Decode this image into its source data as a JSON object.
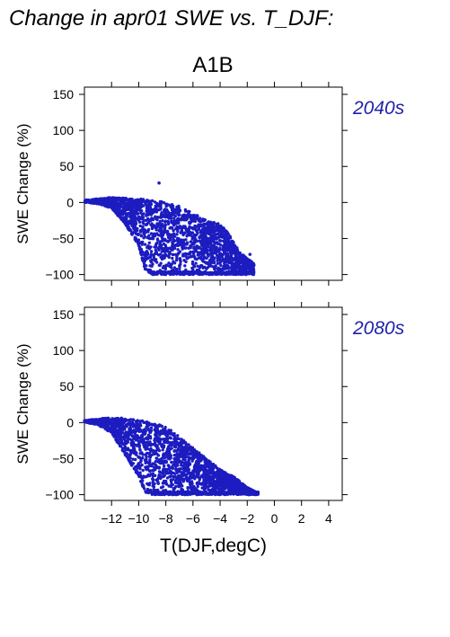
{
  "title": "Change in apr01 SWE vs. T_DJF:",
  "panel_title": "A1B",
  "colors": {
    "points": "#1c1cc0",
    "period_label": "#2222aa",
    "axis": "#000000"
  },
  "chart_data": [
    {
      "type": "scatter",
      "period": "2040s",
      "ylabel": "SWE Change (%)",
      "xlabel": "",
      "xlim": [
        -14,
        5
      ],
      "ylim": [
        -108,
        160
      ],
      "yticks": [
        -100,
        -50,
        0,
        50,
        100,
        150
      ],
      "xticks": [
        -12,
        -10,
        -8,
        -6,
        -4,
        -2,
        0,
        2,
        4
      ],
      "envelope": {
        "x": [
          -14.0,
          -13.0,
          -12.0,
          -11.0,
          -10.0,
          -9.5,
          -9.0,
          -8.0,
          -7.0,
          -6.0,
          -5.0,
          -4.0,
          -3.5,
          -3.0,
          -2.5,
          -1.5
        ],
        "upper": [
          3,
          5,
          7,
          6,
          5,
          4,
          3,
          0,
          -5,
          -15,
          -25,
          -30,
          -40,
          -55,
          -70,
          -85
        ],
        "lower": [
          0,
          -2,
          -8,
          -30,
          -60,
          -95,
          -100,
          -100,
          -100,
          -100,
          -100,
          -100,
          -100,
          -100,
          -100,
          -100
        ]
      },
      "outliers": [
        {
          "x": -8.5,
          "y": 27
        },
        {
          "x": -1.8,
          "y": -72
        }
      ]
    },
    {
      "type": "scatter",
      "period": "2080s",
      "ylabel": "SWE Change (%)",
      "xlabel": "T(DJF,degC)",
      "xlim": [
        -14,
        5
      ],
      "ylim": [
        -108,
        160
      ],
      "yticks": [
        -100,
        -50,
        0,
        50,
        100,
        150
      ],
      "xticks": [
        -12,
        -10,
        -8,
        -6,
        -4,
        -2,
        0,
        2,
        4
      ],
      "xtick_labels": [
        "−12",
        "−10",
        "−8",
        "−6",
        "−4",
        "−2",
        "0",
        "2",
        "4"
      ],
      "ytick_labels": [
        "−100",
        "−50",
        "0",
        "50",
        "100",
        "150"
      ],
      "envelope": {
        "x": [
          -14.0,
          -13.0,
          -12.0,
          -11.0,
          -10.0,
          -9.5,
          -9.0,
          -8.0,
          -7.0,
          -6.0,
          -5.0,
          -4.0,
          -3.0,
          -2.0,
          -1.2
        ],
        "upper": [
          3,
          5,
          7,
          6,
          4,
          2,
          0,
          -5,
          -20,
          -35,
          -50,
          -65,
          -75,
          -90,
          -98
        ],
        "lower": [
          0,
          -3,
          -15,
          -45,
          -75,
          -98,
          -100,
          -100,
          -100,
          -100,
          -100,
          -100,
          -100,
          -100,
          -100
        ]
      },
      "outliers": []
    }
  ]
}
